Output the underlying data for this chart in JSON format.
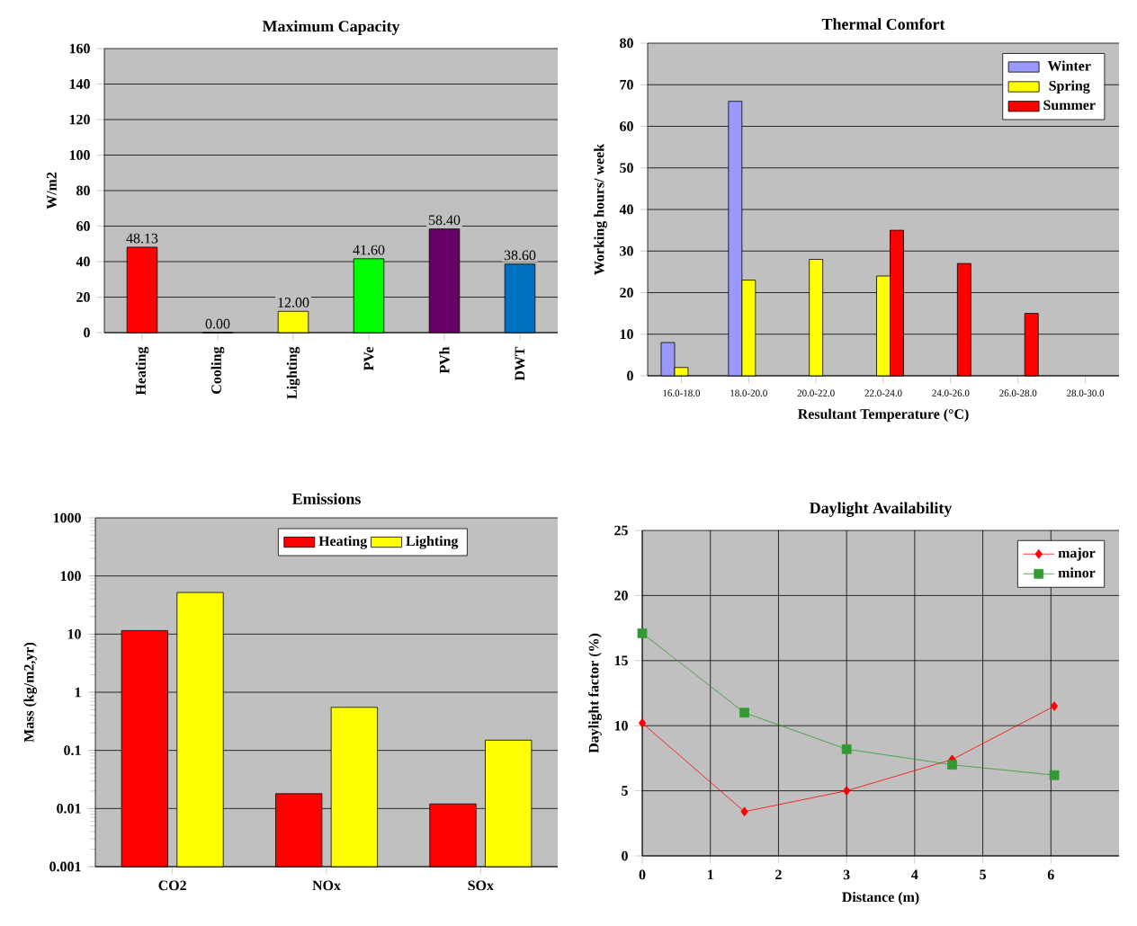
{
  "chart_data": [
    {
      "type": "bar",
      "title": "Maximum Capacity",
      "ylabel": "W/m2",
      "categories": [
        "Heating",
        "Cooling",
        "Lighting",
        "PVe",
        "PVh",
        "DWT"
      ],
      "values": [
        48.13,
        0,
        12,
        41.6,
        58.4,
        38.6
      ],
      "colors": [
        "#ff0000",
        "#000000",
        "#ffff00",
        "#00ff00",
        "#660066",
        "#0070c0"
      ],
      "value_labels": [
        "48.13",
        "0.00",
        "12.00",
        "41.60",
        "58.40",
        "38.60"
      ],
      "ylim": [
        0,
        160
      ],
      "yticks": [
        0,
        20,
        40,
        60,
        80,
        100,
        120,
        140,
        160
      ],
      "grid": "y"
    },
    {
      "type": "bar",
      "title": "Thermal Comfort",
      "xlabel": "Resultant Temperature (°C)",
      "ylabel": "Working hours/ week",
      "categories": [
        "16.0-18.0",
        "18.0-20.0",
        "20.0-22.0",
        "22.0-24.0",
        "24.0-26.0",
        "26.0-28.0",
        "28.0-30.0"
      ],
      "series": [
        {
          "name": "Winter",
          "color": "#9999ff",
          "values": [
            8,
            66,
            null,
            null,
            null,
            null,
            null
          ]
        },
        {
          "name": "Spring",
          "color": "#ffff00",
          "values": [
            2,
            23,
            28,
            24,
            null,
            null,
            null
          ]
        },
        {
          "name": "Summer",
          "color": "#ff0000",
          "values": [
            null,
            null,
            null,
            35,
            27,
            15,
            null
          ]
        }
      ],
      "ylim": [
        0,
        80
      ],
      "yticks": [
        0,
        10,
        20,
        30,
        40,
        50,
        60,
        70,
        80
      ],
      "grid": "y",
      "legend": "top right"
    },
    {
      "type": "bar",
      "title": "Emissions",
      "ylabel": "Mass (kg/m2,yr)",
      "categories": [
        "CO2",
        "NOx",
        "SOx"
      ],
      "series": [
        {
          "name": "Heating",
          "color": "#ff0000",
          "values": [
            11.5,
            0.018,
            0.012
          ]
        },
        {
          "name": "Lighting",
          "color": "#ffff00",
          "values": [
            52,
            0.55,
            0.15
          ]
        }
      ],
      "log": "y",
      "ylim": [
        0.001,
        1000
      ],
      "yticks": [
        0.001,
        0.01,
        0.1,
        1,
        10,
        100,
        1000
      ],
      "grid": "y",
      "legend": "top"
    },
    {
      "type": "line",
      "title": "Daylight Availability",
      "xlabel": "Distance (m)",
      "ylabel": "Daylight factor (%)",
      "series": [
        {
          "name": "major",
          "color": "#ff0000",
          "marker": "diamond",
          "x": [
            0,
            1.5,
            3,
            4.55,
            6.05
          ],
          "values": [
            10.2,
            3.4,
            5,
            7.4,
            11.5
          ]
        },
        {
          "name": "minor",
          "color": "#339933",
          "marker": "square",
          "x": [
            0,
            1.5,
            3,
            4.55,
            6.05
          ],
          "values": [
            17.1,
            11,
            8.2,
            7,
            6.2
          ]
        }
      ],
      "xlim": [
        0,
        7
      ],
      "xticks": [
        0,
        1,
        2,
        3,
        4,
        5,
        6
      ],
      "ylim": [
        0,
        25
      ],
      "yticks": [
        0,
        5,
        10,
        15,
        20,
        25
      ],
      "grid": true,
      "legend": "top right"
    }
  ]
}
